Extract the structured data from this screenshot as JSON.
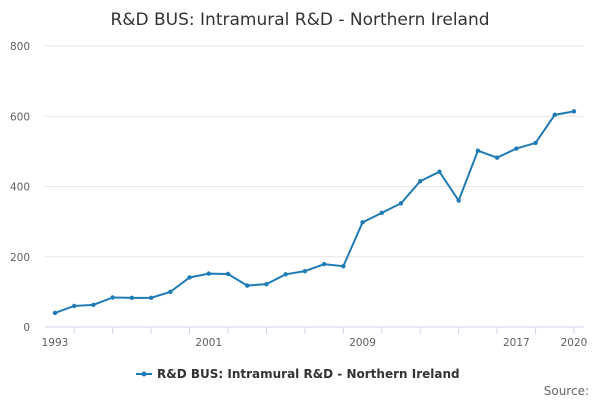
{
  "chart_data": {
    "type": "line",
    "title": "R&D BUS: Intramural R&D - Northern Ireland",
    "xlabel": "",
    "ylabel": "",
    "ylim": [
      0,
      800
    ],
    "y_ticks": [
      0,
      200,
      400,
      600,
      800
    ],
    "x_tick_labels": [
      "1993",
      "2001",
      "2009",
      "2017",
      "2020"
    ],
    "grid": true,
    "legend_position": "bottom-center",
    "series": [
      {
        "name": "R&D BUS: Intramural R&D - Northern Ireland",
        "color": "#1f7bb6",
        "x": [
          1993,
          1994,
          1995,
          1996,
          1997,
          1998,
          1999,
          2000,
          2001,
          2002,
          2003,
          2004,
          2005,
          2006,
          2007,
          2008,
          2009,
          2010,
          2011,
          2012,
          2013,
          2014,
          2015,
          2016,
          2017,
          2018,
          2019,
          2020
        ],
        "values": [
          40,
          60,
          63,
          84,
          83,
          83,
          100,
          141,
          152,
          151,
          118,
          122,
          150,
          159,
          179,
          173,
          298,
          325,
          352,
          415,
          442,
          360,
          502,
          482,
          508,
          524,
          604,
          614
        ]
      }
    ],
    "source_label": "Source:"
  }
}
